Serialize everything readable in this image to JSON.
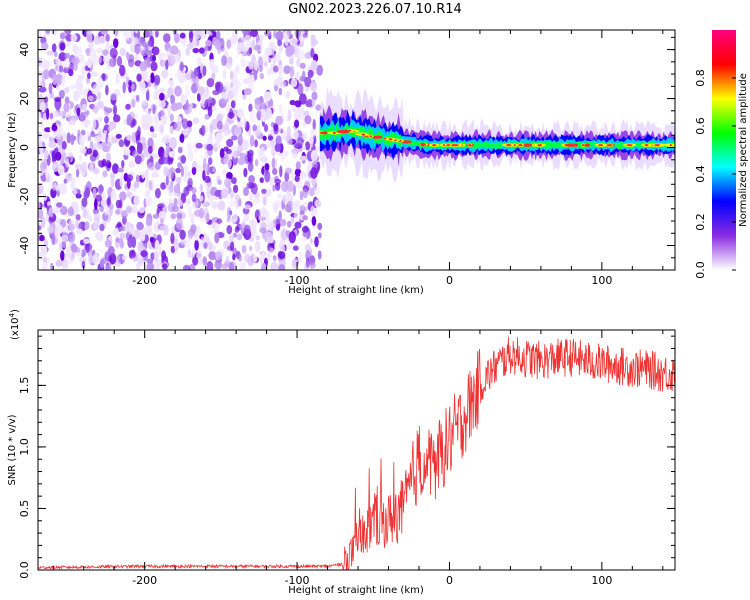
{
  "title": "GN02.2023.226.07.10.R14",
  "chart_data": [
    {
      "type": "heatmap",
      "xlabel": "Height of straight line (km)",
      "ylabel": "Frequency (Hz)",
      "xlim": [
        -270,
        148
      ],
      "ylim": [
        -50,
        48
      ],
      "x_ticks": [
        "-200",
        "-100",
        "0",
        "100"
      ],
      "y_ticks": [
        "-40",
        "-20",
        "0",
        "20",
        "40"
      ],
      "noise_region_x": [
        -270,
        -85
      ],
      "signal_track": {
        "x": [
          -85,
          -75,
          -65,
          -55,
          -45,
          -35,
          -25,
          -15,
          0,
          25,
          50,
          75,
          100,
          125,
          148
        ],
        "frequency": [
          6,
          6,
          7,
          5,
          4,
          3,
          2,
          1,
          1,
          1,
          1,
          1,
          1,
          1,
          1
        ]
      },
      "colorbar": {
        "label": "Normalized spectral amplitude",
        "range": [
          0,
          1
        ],
        "ticks": [
          "0.0",
          "0.2",
          "0.4",
          "0.6",
          "0.8"
        ],
        "colors": [
          "#ffffff",
          "#8a2be2",
          "#0000ff",
          "#00ffff",
          "#00ff00",
          "#ffff00",
          "#ff0000",
          "#ff0080"
        ]
      },
      "grid": false
    },
    {
      "type": "line",
      "xlabel": "Height of straight line (km)",
      "ylabel": "SNR (10 * v/v)",
      "scale_label": "(x10",
      "scale_exp": "4",
      "scale_close": ")",
      "xlim": [
        -270,
        148
      ],
      "ylim": [
        0,
        1.95
      ],
      "x_ticks": [
        "-200",
        "-100",
        "0",
        "100"
      ],
      "y_ticks": [
        "0.0",
        "0.5",
        "1.0",
        "1.5"
      ],
      "line_color": "#ee3333",
      "series": [
        {
          "x": [
            -270,
            -200,
            -150,
            -100,
            -80,
            -70,
            -60,
            -50,
            -40,
            -30,
            -20,
            -10,
            0,
            10,
            20,
            30,
            40,
            50,
            60,
            70,
            80,
            90,
            100,
            110,
            120,
            130,
            140,
            148
          ],
          "y": [
            0.02,
            0.03,
            0.03,
            0.03,
            0.03,
            0.05,
            0.2,
            0.4,
            0.4,
            0.5,
            0.9,
            0.85,
            1.05,
            1.25,
            1.5,
            1.65,
            1.75,
            1.72,
            1.7,
            1.72,
            1.73,
            1.7,
            1.68,
            1.66,
            1.64,
            1.63,
            1.6,
            1.6
          ]
        }
      ],
      "grid": false
    }
  ]
}
